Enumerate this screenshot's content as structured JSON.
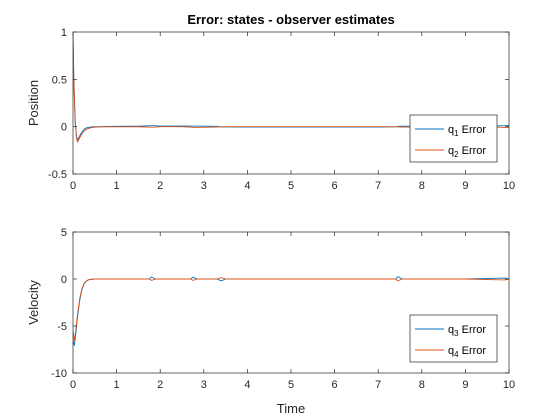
{
  "colors": {
    "series_a": "#0072BD",
    "series_b": "#D95319",
    "axis": "#262626",
    "background": "#ffffff"
  },
  "chart_data": [
    {
      "type": "line",
      "title": "Error: states - observer estimates",
      "xlabel": "",
      "ylabel": "Position",
      "xlim": [
        0,
        10
      ],
      "ylim": [
        -0.5,
        1
      ],
      "xticks": [
        0,
        1,
        2,
        3,
        4,
        5,
        6,
        7,
        8,
        9,
        10
      ],
      "yticks": [
        -0.5,
        0,
        0.5,
        1
      ],
      "grid": false,
      "legend_position": "right",
      "series": [
        {
          "name": "q₁ Error",
          "legend_base": "q",
          "legend_sub": "1",
          "legend_suffix": " Error",
          "color_key": "series_a",
          "x": [
            0,
            0.02,
            0.05,
            0.08,
            0.1,
            0.12,
            0.15,
            0.2,
            0.25,
            0.3,
            0.35,
            0.4,
            0.5,
            0.6,
            0.8,
            1.0,
            1.5,
            1.8,
            1.85,
            2.0,
            2.5,
            2.8,
            3.3,
            3.4,
            4.0,
            5.0,
            6.0,
            7.0,
            7.4,
            7.5,
            8.0,
            8.6,
            8.7,
            9.0,
            9.5,
            9.9,
            10.0
          ],
          "y": [
            1.0,
            0.45,
            0.05,
            -0.1,
            -0.14,
            -0.13,
            -0.1,
            -0.06,
            -0.03,
            -0.015,
            -0.008,
            -0.004,
            -0.001,
            0.0,
            0.002,
            0.004,
            0.005,
            0.01,
            0.01,
            0.006,
            0.006,
            0.006,
            0.004,
            -0.003,
            -0.004,
            -0.004,
            -0.004,
            -0.004,
            -0.002,
            0.005,
            0.005,
            0.01,
            0.0,
            0.005,
            0.005,
            0.01,
            0.01
          ]
        },
        {
          "name": "q₂ Error",
          "legend_base": "q",
          "legend_sub": "2",
          "legend_suffix": " Error",
          "color_key": "series_b",
          "x": [
            0,
            0.02,
            0.05,
            0.08,
            0.1,
            0.12,
            0.15,
            0.2,
            0.25,
            0.3,
            0.35,
            0.4,
            0.5,
            0.6,
            0.8,
            1.0,
            1.5,
            1.8,
            1.85,
            2.0,
            2.5,
            2.8,
            3.3,
            3.4,
            4.0,
            5.0,
            6.0,
            7.0,
            7.4,
            7.5,
            8.0,
            8.6,
            8.7,
            9.0,
            9.5,
            9.9,
            10.0
          ],
          "y": [
            0.92,
            0.5,
            0.08,
            -0.12,
            -0.16,
            -0.15,
            -0.12,
            -0.08,
            -0.05,
            -0.03,
            -0.02,
            -0.012,
            -0.006,
            -0.003,
            -0.002,
            -0.002,
            -0.001,
            -0.005,
            -0.005,
            0.0,
            0.0,
            -0.008,
            -0.004,
            0.0,
            0.0,
            0.0,
            0.0,
            0.0,
            0.0,
            -0.004,
            -0.004,
            -0.004,
            0.004,
            0.004,
            0.0,
            -0.008,
            -0.008
          ]
        }
      ]
    },
    {
      "type": "line",
      "title": "",
      "xlabel": "Time",
      "ylabel": "Velocity",
      "xlim": [
        0,
        10
      ],
      "ylim": [
        -10,
        5
      ],
      "xticks": [
        0,
        1,
        2,
        3,
        4,
        5,
        6,
        7,
        8,
        9,
        10
      ],
      "yticks": [
        -10,
        -5,
        0,
        5
      ],
      "grid": false,
      "legend_position": "lower right",
      "series": [
        {
          "name": "q₃ Error",
          "legend_base": "q",
          "legend_sub": "3",
          "legend_suffix": " Error",
          "color_key": "series_a",
          "x": [
            0,
            0.03,
            0.06,
            0.1,
            0.15,
            0.2,
            0.25,
            0.3,
            0.35,
            0.4,
            0.5,
            0.6,
            0.8,
            1.0,
            1.75,
            1.8,
            1.9,
            2.0,
            2.7,
            2.75,
            2.85,
            3.3,
            3.4,
            3.5,
            4.0,
            5.0,
            6.0,
            7.0,
            7.4,
            7.45,
            7.55,
            8.0,
            8.6,
            8.7,
            9.0,
            9.9,
            10.0
          ],
          "y": [
            -6.5,
            -7.1,
            -6.0,
            -4.2,
            -2.4,
            -1.2,
            -0.55,
            -0.25,
            -0.1,
            -0.05,
            -0.01,
            0.0,
            0.0,
            0.0,
            0.0,
            0.2,
            0.0,
            0.0,
            0.0,
            0.2,
            0.0,
            0.0,
            -0.2,
            0.0,
            0.0,
            0.0,
            0.0,
            0.0,
            0.0,
            0.25,
            0.0,
            0.0,
            0.0,
            0.0,
            0.0,
            0.1,
            0.0
          ]
        },
        {
          "name": "q₄ Error",
          "legend_base": "q",
          "legend_sub": "4",
          "legend_suffix": " Error",
          "color_key": "series_b",
          "x": [
            0,
            0.03,
            0.06,
            0.1,
            0.15,
            0.2,
            0.25,
            0.3,
            0.35,
            0.4,
            0.5,
            0.6,
            0.8,
            1.0,
            1.75,
            1.8,
            1.9,
            2.0,
            2.7,
            2.75,
            2.85,
            3.3,
            3.4,
            3.5,
            4.0,
            5.0,
            6.0,
            7.0,
            7.4,
            7.45,
            7.55,
            8.0,
            8.6,
            8.7,
            9.0,
            9.9,
            10.0
          ],
          "y": [
            -5.5,
            -6.6,
            -5.6,
            -3.9,
            -2.2,
            -1.1,
            -0.5,
            -0.22,
            -0.09,
            -0.04,
            -0.01,
            0.0,
            0.0,
            0.0,
            0.0,
            -0.15,
            0.0,
            0.0,
            0.0,
            -0.15,
            0.0,
            0.0,
            0.15,
            0.0,
            0.0,
            0.0,
            0.0,
            0.0,
            0.0,
            -0.2,
            0.0,
            0.0,
            0.0,
            0.0,
            0.0,
            -0.1,
            0.0
          ]
        }
      ]
    }
  ]
}
